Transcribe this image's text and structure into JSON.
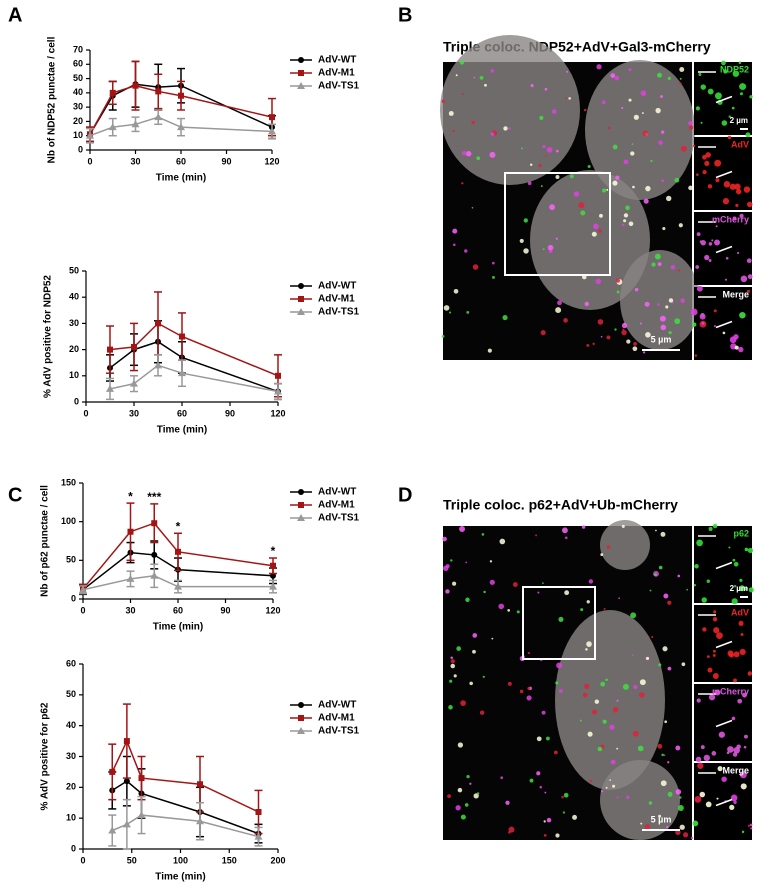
{
  "panel_labels": [
    "A",
    "B",
    "C",
    "D"
  ],
  "chart_data": [
    {
      "type": "line",
      "xlabel": "Time (min)",
      "ylabel": "Nb of NDP52 punctae / cell",
      "x": [
        0,
        15,
        30,
        45,
        60,
        120
      ],
      "xlim": [
        0,
        120
      ],
      "xticks": [
        0,
        30,
        60,
        90,
        120
      ],
      "ylim": [
        0,
        70
      ],
      "yticks": [
        0,
        10,
        20,
        30,
        40,
        50,
        60,
        70
      ],
      "series": [
        {
          "name": "AdV-WT",
          "color": "#000000",
          "marker": "circle",
          "values": [
            11,
            38,
            46,
            44,
            45,
            16
          ],
          "errors": [
            5,
            10,
            16,
            16,
            12,
            8
          ]
        },
        {
          "name": "AdV-M1",
          "color": "#a31515",
          "marker": "square",
          "values": [
            11,
            40,
            45,
            41,
            38,
            23
          ],
          "errors": [
            5,
            8,
            17,
            12,
            10,
            13
          ]
        },
        {
          "name": "AdV-TS1",
          "color": "#999999",
          "marker": "triangle",
          "values": [
            10,
            16,
            18,
            23,
            16,
            13
          ],
          "errors": [
            5,
            6,
            5,
            5,
            6,
            5
          ]
        }
      ]
    },
    {
      "type": "line",
      "xlabel": "Time (min)",
      "ylabel": "% AdV positive for NDP52",
      "x": [
        15,
        30,
        45,
        60,
        120
      ],
      "xlim": [
        0,
        120
      ],
      "xticks": [
        0,
        30,
        60,
        90,
        120
      ],
      "ylim": [
        0,
        50
      ],
      "yticks": [
        0,
        10,
        20,
        30,
        40,
        50
      ],
      "series": [
        {
          "name": "AdV-WT",
          "color": "#000000",
          "marker": "circle",
          "values": [
            13,
            20,
            23,
            17,
            4
          ],
          "errors": [
            5,
            6,
            8,
            6,
            3
          ]
        },
        {
          "name": "AdV-M1",
          "color": "#a31515",
          "marker": "square",
          "values": [
            20,
            21,
            30,
            25,
            10
          ],
          "errors": [
            9,
            9,
            12,
            9,
            8
          ]
        },
        {
          "name": "AdV-TS1",
          "color": "#999999",
          "marker": "triangle",
          "values": [
            5,
            7,
            14,
            11,
            4
          ],
          "errors": [
            4,
            3,
            4,
            5,
            3
          ]
        }
      ]
    },
    {
      "type": "line",
      "xlabel": "Time (min)",
      "ylabel": "Nb of p62 punctae / cell",
      "x": [
        0,
        30,
        45,
        60,
        120
      ],
      "xlim": [
        0,
        120
      ],
      "xticks": [
        0,
        30,
        60,
        90,
        120
      ],
      "ylim": [
        0,
        150
      ],
      "yticks": [
        0,
        50,
        100,
        150
      ],
      "series": [
        {
          "name": "AdV-WT",
          "color": "#000000",
          "marker": "circle",
          "values": [
            12,
            60,
            57,
            38,
            30
          ],
          "errors": [
            6,
            13,
            18,
            15,
            10
          ]
        },
        {
          "name": "AdV-M1",
          "color": "#a31515",
          "marker": "square",
          "values": [
            13,
            87,
            98,
            61,
            43
          ],
          "errors": [
            6,
            37,
            25,
            24,
            10
          ]
        },
        {
          "name": "AdV-TS1",
          "color": "#999999",
          "marker": "triangle",
          "values": [
            12,
            26,
            30,
            16,
            16
          ],
          "errors": [
            5,
            10,
            15,
            8,
            8
          ]
        }
      ],
      "annotations": [
        {
          "x": 30,
          "text": "*"
        },
        {
          "x": 45,
          "text": "***"
        },
        {
          "x": 60,
          "text": "*"
        },
        {
          "x": 120,
          "text": "*"
        }
      ]
    },
    {
      "type": "line",
      "xlabel": "Time (min)",
      "ylabel": "% AdV positive for p62",
      "x": [
        30,
        45,
        60,
        120,
        180
      ],
      "xlim": [
        0,
        200
      ],
      "xticks": [
        0,
        50,
        100,
        150,
        200
      ],
      "ylim": [
        0,
        60
      ],
      "yticks": [
        0,
        10,
        20,
        30,
        40,
        50,
        60
      ],
      "series": [
        {
          "name": "AdV-WT",
          "color": "#000000",
          "marker": "circle",
          "values": [
            19,
            22,
            18,
            12,
            5
          ],
          "errors": [
            6,
            8,
            8,
            8,
            3
          ]
        },
        {
          "name": "AdV-M1",
          "color": "#a31515",
          "marker": "square",
          "values": [
            25,
            35,
            23,
            21,
            12
          ],
          "errors": [
            9,
            12,
            7,
            9,
            7
          ]
        },
        {
          "name": "AdV-TS1",
          "color": "#999999",
          "marker": "triangle",
          "values": [
            6,
            8,
            11,
            9,
            4
          ],
          "errors": [
            5,
            8,
            6,
            6,
            3
          ]
        }
      ]
    }
  ],
  "images": [
    {
      "title": "Triple coloc.  NDP52+AdV+Gal3-mCherry",
      "scale_bar": "5 µm",
      "inset_scale": "2 µm",
      "insets": [
        {
          "label": "NDP52",
          "color": "#33dd33"
        },
        {
          "label": "AdV",
          "color": "#ee2222"
        },
        {
          "label": "mCherry",
          "color": "#dd55dd"
        },
        {
          "label": "Merge",
          "color": "#ffffff"
        }
      ]
    },
    {
      "title": "Triple coloc. p62+AdV+Ub-mCherry",
      "scale_bar": "5 µm",
      "inset_scale": "2 µm",
      "insets": [
        {
          "label": "p62",
          "color": "#33dd33"
        },
        {
          "label": "AdV",
          "color": "#ee2222"
        },
        {
          "label": "mCherry",
          "color": "#dd55dd"
        },
        {
          "label": "Merge",
          "color": "#ffffff"
        }
      ]
    }
  ]
}
